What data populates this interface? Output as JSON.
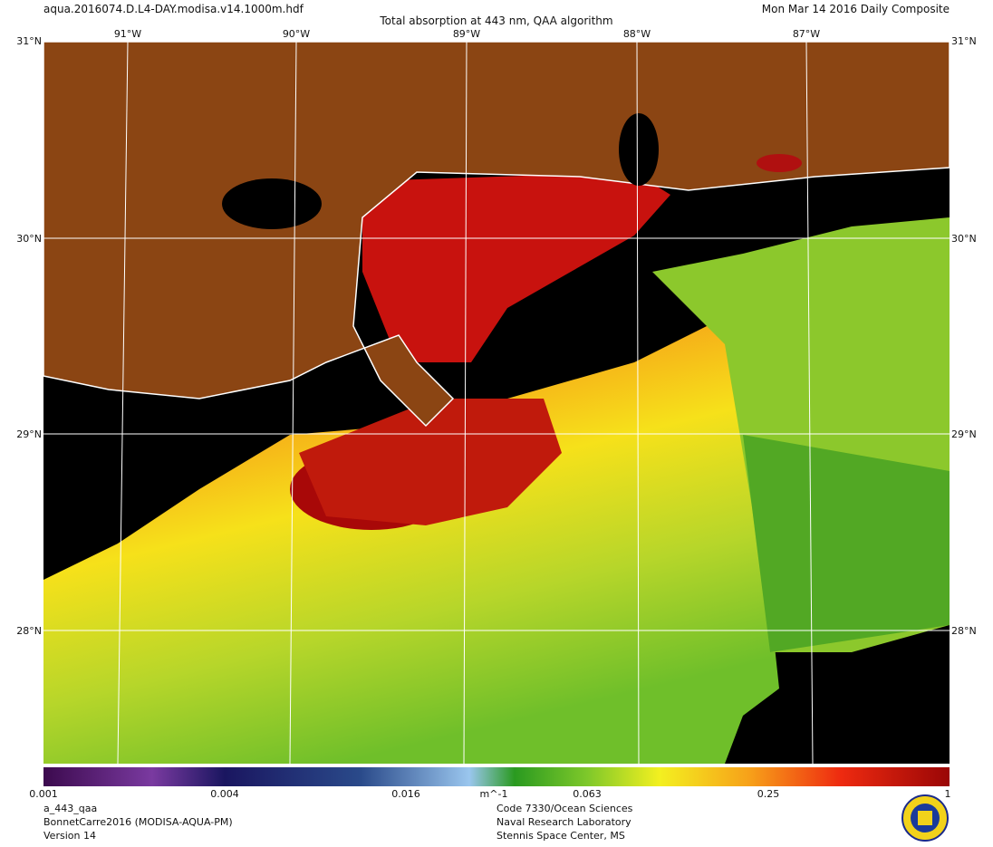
{
  "header": {
    "file": "aqua.2016074.D.L4-DAY.modisa.v14.1000m.hdf",
    "title": "Total absorption at 443 nm, QAA algorithm",
    "date": "Mon Mar 14 2016 Daily Composite"
  },
  "map": {
    "longitudes": [
      "91°W",
      "90°W",
      "89°W",
      "88°W",
      "87°W"
    ],
    "latitudes": [
      "31°N",
      "30°N",
      "29°N",
      "28°N"
    ]
  },
  "colorbar": {
    "ticks": [
      "0.001",
      "0.004",
      "0.016",
      "0.063",
      "0.25",
      "1"
    ],
    "unit": "m^-1"
  },
  "footer": {
    "left": [
      "a_443_qaa",
      "BonnetCarre2016 (MODISA-AQUA-PM)",
      "Version 14"
    ],
    "right": [
      "Code 7330/Ocean Sciences",
      "Naval Research Laboratory",
      "Stennis Space Center, MS"
    ]
  }
}
